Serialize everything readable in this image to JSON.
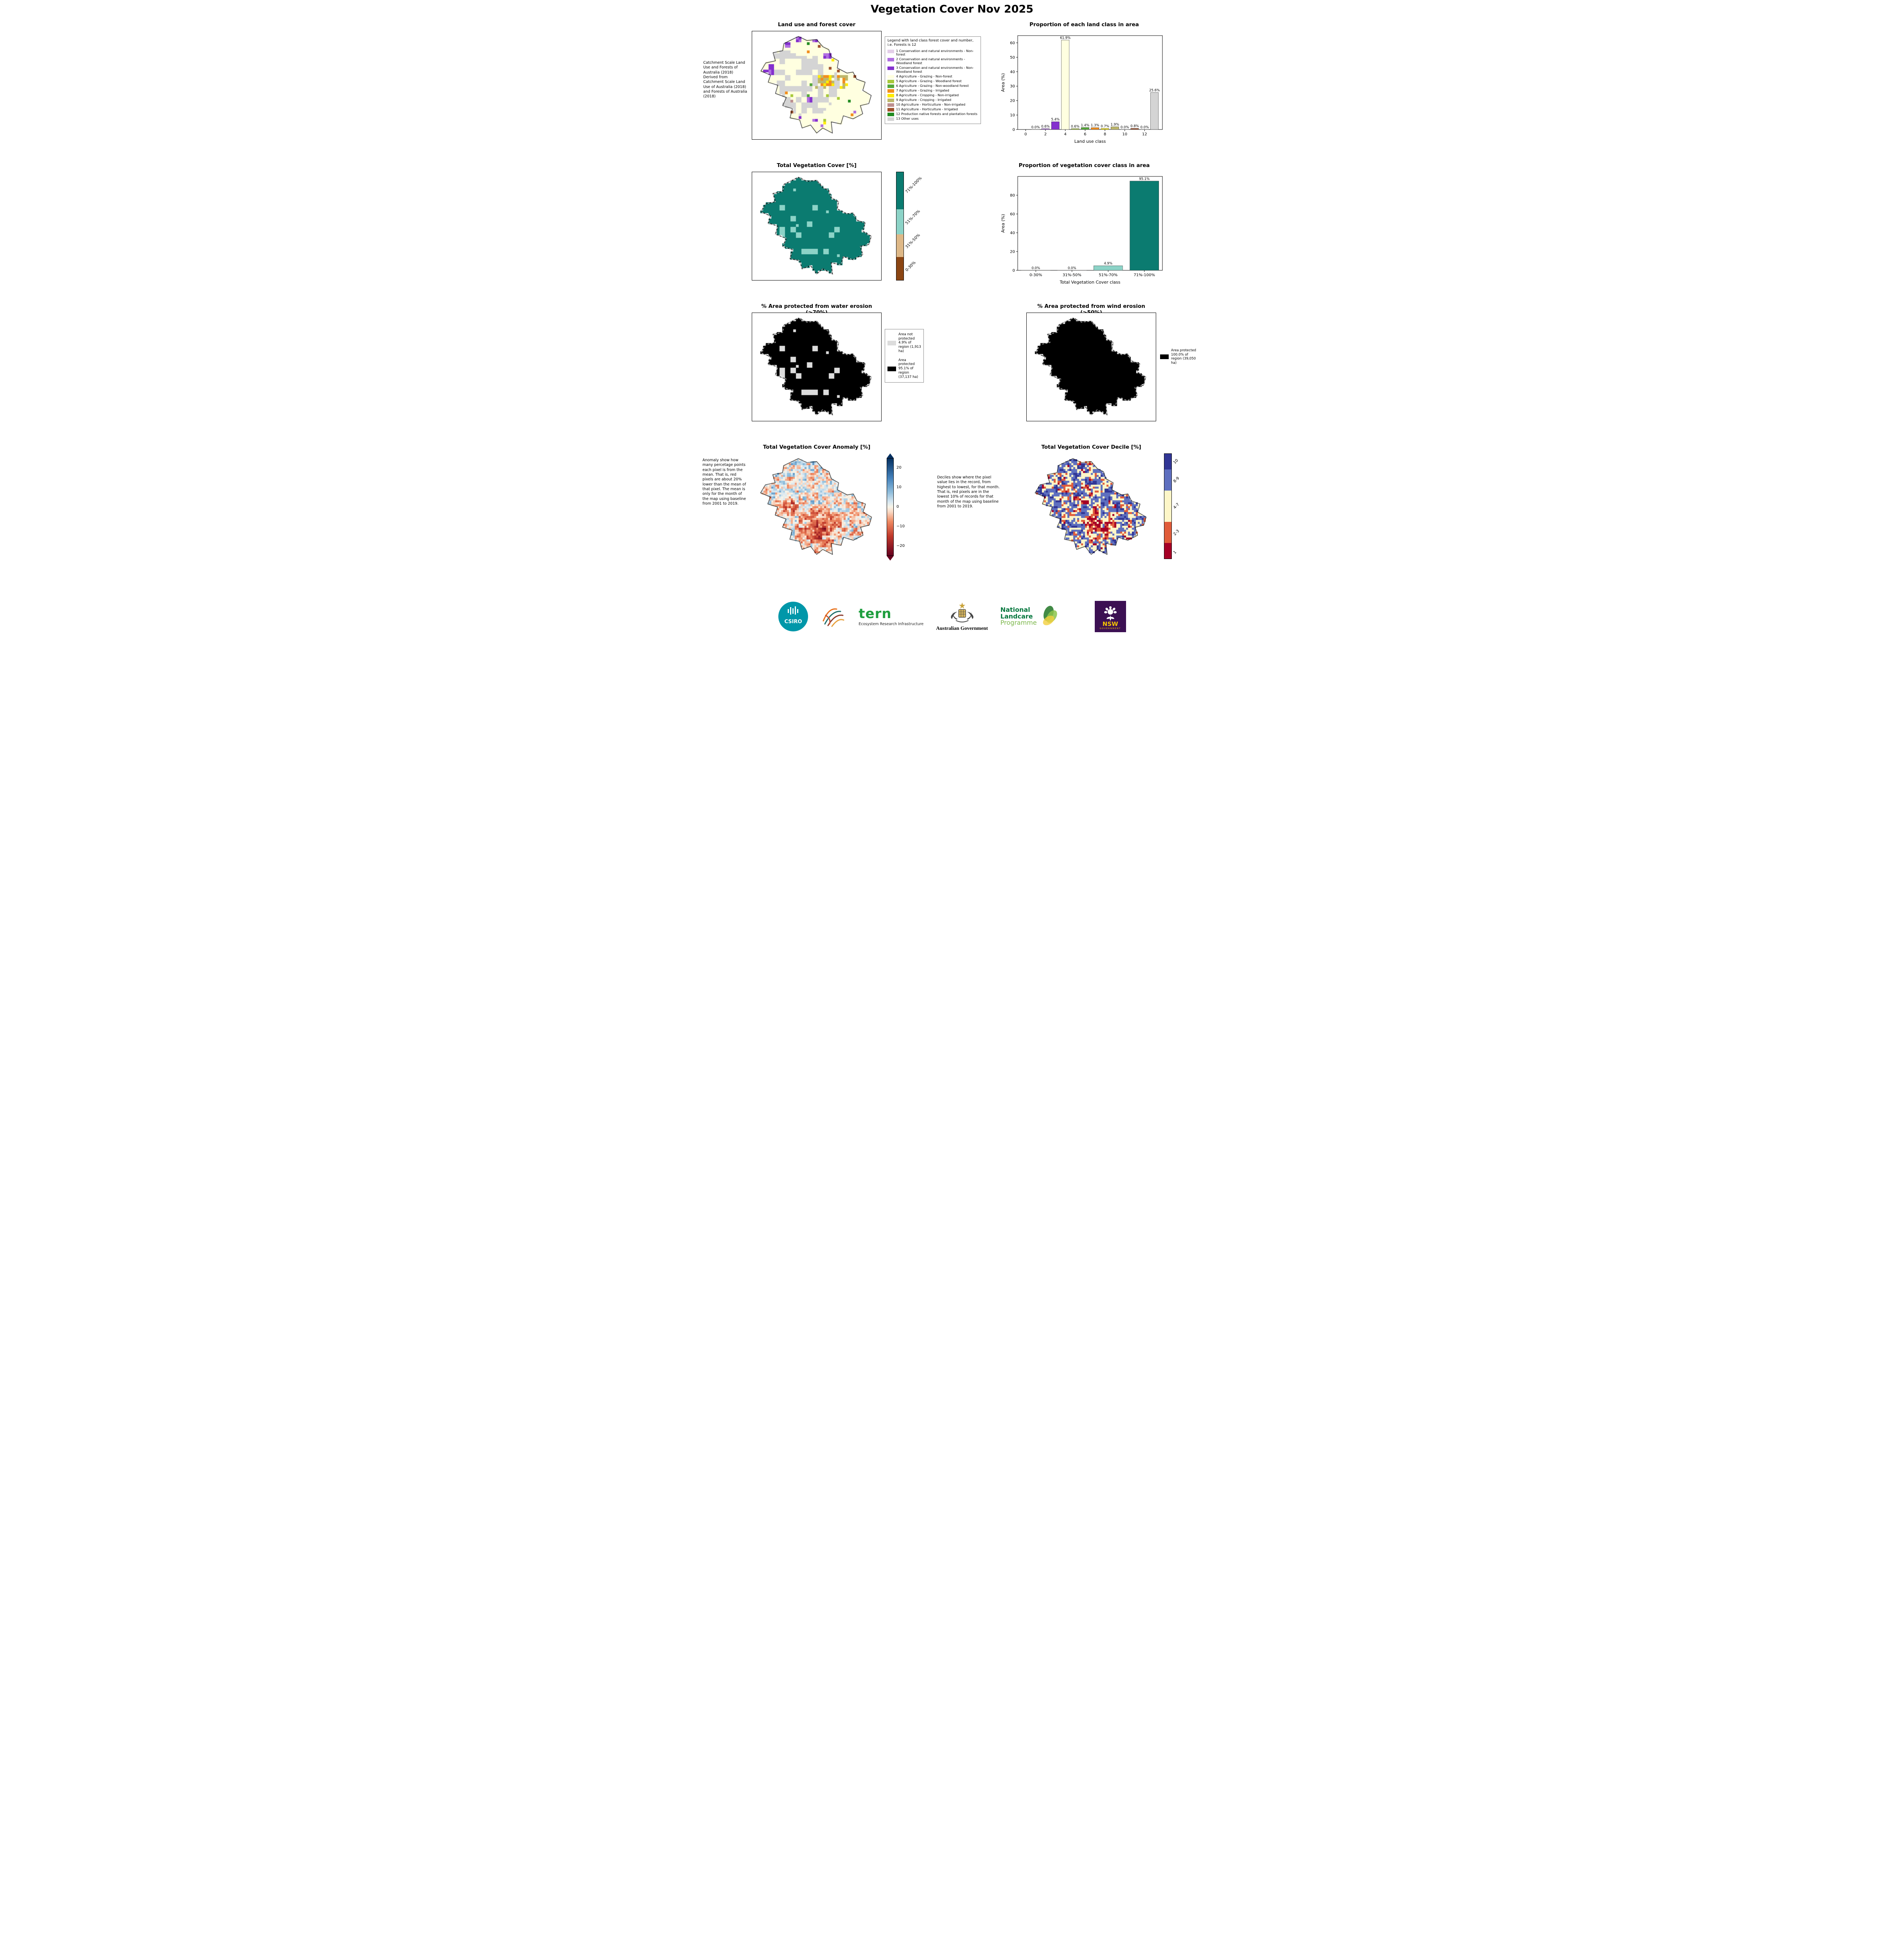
{
  "title": "Vegetation Cover Nov 2025",
  "palette": {
    "landuse": [
      "#E3CEE8",
      "#B06FE0",
      "#8430CE",
      "#FFFFE0",
      "#A8C93A",
      "#55A839",
      "#F28E1C",
      "#FFEB00",
      "#BDB76B",
      "#BC8F8F",
      "#A0522D",
      "#228B22",
      "#D4D4D4"
    ],
    "map_teal": "#0B7B70",
    "map_teal_light": "#8CD3C7",
    "not_protected_gray": "#DCDCDC",
    "protected_black": "#000000",
    "decile": [
      "#A50026",
      "#E05C3A",
      "#FDF6C8",
      "#5E6FBF",
      "#313695"
    ],
    "anomaly_ends": [
      "#67001F",
      "#053061"
    ]
  },
  "chart_data": [
    {
      "id": "landuse_bar",
      "type": "bar",
      "title": "Proportion of each land class in area",
      "xlabel": "Land use class",
      "ylabel": "Area (%)",
      "categories": [
        1,
        2,
        3,
        4,
        5,
        6,
        7,
        8,
        9,
        10,
        11,
        12,
        13
      ],
      "values": [
        0.0,
        0.6,
        5.4,
        61.9,
        0.6,
        1.4,
        1.3,
        0.7,
        1.9,
        0.0,
        0.8,
        0.0,
        25.6
      ],
      "bar_labels": [
        "0.0%",
        "0.6%",
        "5.4%",
        "61.9%",
        "0.6%",
        "1.4%",
        "1.3%",
        "0.7%",
        "1.9%",
        "0.0%",
        "0.8%",
        "0.0%",
        "25.6%"
      ],
      "ylim": [
        0,
        65
      ],
      "yticks": [
        0,
        10,
        20,
        30,
        40,
        50,
        60
      ],
      "xticks": [
        0,
        2,
        4,
        6,
        8,
        10,
        12
      ],
      "xlim": [
        -0.8,
        13.8
      ],
      "numeric_x": true,
      "grid": false,
      "colors_from": "landuse",
      "legend_position": "none"
    },
    {
      "id": "vegcover_bar",
      "type": "bar",
      "title": "Proportion of vegetation cover class in area",
      "xlabel": "Total Vegetation Cover class",
      "ylabel": "Area (%)",
      "categories": [
        "0-30%",
        "31%-50%",
        "51%-70%",
        "71%-100%"
      ],
      "values": [
        0.0,
        0.0,
        4.9,
        95.1
      ],
      "bar_labels": [
        "0.0%",
        "0.0%",
        "4.9%",
        "95.1%"
      ],
      "bar_colors": [
        "#8B4513",
        "#DEB887",
        "#8CD3C7",
        "#0B7B70"
      ],
      "ylim": [
        0,
        100
      ],
      "yticks": [
        0,
        20,
        40,
        60,
        80
      ],
      "numeric_x": false,
      "grid": false
    },
    {
      "id": "landuse_map",
      "type": "heatmap",
      "title": "Land use and forest cover",
      "side_note": " Catchment Scale Land Use and Forests of Australia (2018) Derived from Catchment Scale Land Use of Australia (2018) and Forests of Australia (2018)",
      "legend_title": "Legend with land class forest cover and number, i.e. Forests is 12",
      "classes": [
        {
          "label": "1 Conservation and natural environments - Non-forest",
          "area_pct": 0.0
        },
        {
          "label": "2 Conservation and natural environments - Woodland forest",
          "area_pct": 0.6
        },
        {
          "label": "3 Conservation and natural environments - Non-Woodland forest",
          "area_pct": 5.4
        },
        {
          "label": "4 Agriculture - Grazing - Non-forest",
          "area_pct": 61.9
        },
        {
          "label": "5 Agriculture - Grazing - Woodland forest",
          "area_pct": 0.6
        },
        {
          "label": "6 Agriculture - Grazing - Non-woodland forest",
          "area_pct": 1.4
        },
        {
          "label": "7 Agriculture - Grazing - Irrigated",
          "area_pct": 1.3
        },
        {
          "label": "8 Agriculture - Cropping - Non-irrigated",
          "area_pct": 0.7
        },
        {
          "label": "9 Agriculture - Cropping - Irrigated",
          "area_pct": 1.9
        },
        {
          "label": "10 Agriculture - Horticulture - Non-irrigated",
          "area_pct": 0.0
        },
        {
          "label": "11 Agriculture - Horticulture - Irrigated",
          "area_pct": 0.8
        },
        {
          "label": "12 Production native forests and plantation forests",
          "area_pct": 0.0
        },
        {
          "label": "13 Other uses",
          "area_pct": 25.6
        }
      ]
    },
    {
      "id": "vegcover_map",
      "type": "heatmap",
      "title": "Total Vegetation Cover [%]",
      "colorbar": [
        {
          "label": "71%-100%",
          "color": "#0B7B70",
          "area_pct": 95.1
        },
        {
          "label": "51%-70%",
          "color": "#8CD3C7",
          "area_pct": 4.9
        },
        {
          "label": "31%-50%",
          "color": "#DEB887",
          "area_pct": 0.0
        },
        {
          "label": "0-30%",
          "color": "#8B4513",
          "area_pct": 0.0
        }
      ]
    },
    {
      "id": "water_erosion_map",
      "type": "heatmap",
      "title": "% Area protected from water erosion (>70%)",
      "legend": [
        {
          "label": "Area not protected 4.9% of region (1,913 ha)",
          "color": "#DCDCDC"
        },
        {
          "label": "Area protected 95.1% of region (37,137 ha)",
          "color": "#000000"
        }
      ]
    },
    {
      "id": "wind_erosion_map",
      "type": "heatmap",
      "title": "% Area protected from wind erosion (>50%)",
      "legend": [
        {
          "label": "Area protected 100.0% of region (39,050 ha)",
          "color": "#000000"
        }
      ]
    },
    {
      "id": "anomaly_map",
      "type": "heatmap",
      "title": "Total Vegetation Cover Anomaly [%]",
      "colorbar_ticks": [
        "20",
        "10",
        "0",
        "−10",
        "−20"
      ],
      "colorbar_range": [
        -25,
        25
      ],
      "note": "Anomaly show how many percetage points each pixel is from the mean. That is, red pixels are about 20% lower than the mean of that pixel. The mean is only for the month of the map using baseline from 2001 to 2019."
    },
    {
      "id": "decile_map",
      "type": "heatmap",
      "title": "Total Vegetation Cover Decile [%]",
      "colorbar": [
        {
          "label": "10",
          "color": "#313695"
        },
        {
          "label": "8-9",
          "color": "#5E6FBF"
        },
        {
          "label": "4-7",
          "color": "#FDF6C8"
        },
        {
          "label": "2-3",
          "color": "#E05C3A"
        },
        {
          "label": "1",
          "color": "#A50026"
        }
      ],
      "note": "Deciles show where the pixel value lies in the record, from highest to lowest, for that month. That is, red pixels are in the lowest 10% of records for that month of the map using baseline from 2001 to 2019."
    }
  ],
  "footer": {
    "csiro_label": "CSIRO",
    "tern_label": "tern",
    "tern_sub": "Ecosystem Research Infrastructure",
    "ausgov_label": "Australian Government",
    "landcare_lines": [
      "National",
      "Landcare",
      "Programme"
    ],
    "nsw_label": "NSW",
    "nsw_sub": "GOVERNMENT"
  }
}
